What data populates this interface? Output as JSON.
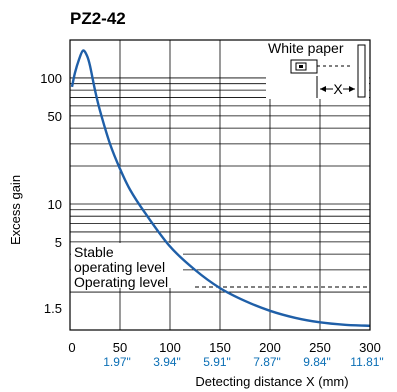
{
  "chart_data": {
    "type": "line",
    "title": "PZ2-42",
    "xlabel": "Detecting distance X (mm)",
    "ylabel": "Excess gain",
    "xlim": [
      0,
      300
    ],
    "ylim": [
      1,
      200
    ],
    "y_scale": "log",
    "grid": true,
    "x_ticks": [
      "0",
      "50",
      "100",
      "150",
      "200",
      "250",
      "300"
    ],
    "x_inch_labels": [
      "1.97\"",
      "3.94\"",
      "5.91\"",
      "7.87\"",
      "9.84\"",
      "11.81\""
    ],
    "y_ticks": [
      "100",
      "50",
      "10",
      "5",
      "1.5"
    ],
    "annotations": {
      "white_paper": "White paper",
      "stable": "Stable",
      "stable_level": "operating level",
      "operating_level": "Operating level",
      "x_marker": "X"
    },
    "series": [
      {
        "color": "#1f5fa8",
        "x": [
          2,
          5,
          9,
          13,
          17,
          20,
          25,
          30,
          40,
          50,
          60,
          75,
          100,
          125,
          150,
          175,
          200,
          225,
          250,
          275,
          300
        ],
        "y": [
          85,
          110,
          140,
          165,
          150,
          125,
          80,
          55,
          30,
          19,
          13,
          8.5,
          4.6,
          3.0,
          2.15,
          1.7,
          1.42,
          1.25,
          1.15,
          1.1,
          1.08
        ]
      }
    ]
  },
  "colors": {
    "curve": "#1f5fa8",
    "inch_labels": "#0b6fb5",
    "grid": "#000000"
  }
}
